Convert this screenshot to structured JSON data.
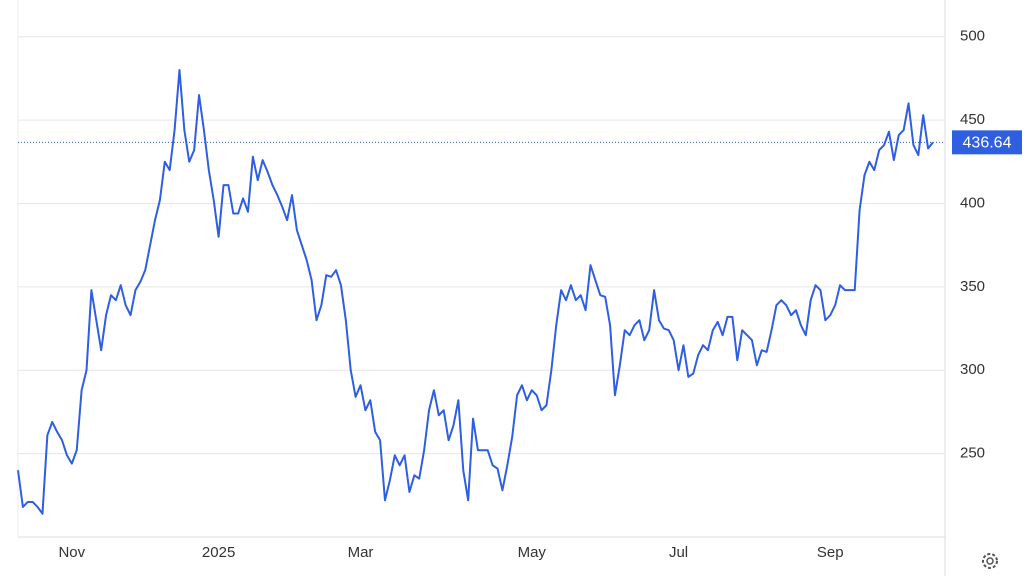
{
  "chart_data": {
    "type": "line",
    "color": "#2d5fe0",
    "grid": true,
    "categories": [
      null,
      null,
      null,
      null,
      null,
      null,
      null,
      null,
      null,
      null,
      null,
      "Nov",
      null,
      null,
      null,
      null,
      null,
      null,
      null,
      null,
      null,
      null,
      null,
      null,
      null,
      null,
      null,
      null,
      null,
      null,
      null,
      null,
      null,
      null,
      null,
      null,
      null,
      null,
      null,
      null,
      null,
      "2025",
      null,
      null,
      null,
      null,
      null,
      null,
      null,
      null,
      null,
      null,
      null,
      null,
      null,
      null,
      null,
      null,
      null,
      null,
      null,
      null,
      null,
      null,
      null,
      null,
      null,
      null,
      null,
      null,
      "Mar",
      null,
      null,
      null,
      null,
      null,
      null,
      null,
      null,
      null,
      null,
      null,
      null,
      null,
      null,
      null,
      null,
      null,
      null,
      null,
      null,
      null,
      null,
      null,
      null,
      null,
      null,
      null,
      null,
      null,
      null,
      null,
      null,
      null,
      null,
      "May",
      null,
      null,
      null,
      null,
      null,
      null,
      null,
      null,
      null,
      null,
      null,
      null,
      null,
      null,
      null,
      null,
      null,
      null,
      null,
      null,
      null,
      null,
      null,
      null,
      null,
      null,
      null,
      null,
      null,
      "Jul",
      null,
      null,
      null,
      null,
      null,
      null,
      null,
      null,
      null,
      null,
      null,
      null,
      null,
      null,
      null,
      null,
      null,
      null,
      null,
      null,
      null,
      null,
      null,
      null,
      null,
      null,
      null,
      null,
      null,
      null,
      "Sep",
      null,
      null,
      null,
      null,
      null,
      null,
      null,
      null,
      null,
      null,
      null,
      null,
      null,
      null,
      null,
      null,
      null,
      null,
      null,
      null,
      null
    ],
    "values": [
      240,
      218,
      221,
      221,
      218,
      214,
      261,
      269,
      263,
      258,
      249,
      244,
      252,
      288,
      300,
      348,
      330,
      312,
      333,
      345,
      342,
      351,
      339,
      333,
      348,
      353,
      360,
      375,
      390,
      402,
      425,
      420,
      444,
      480,
      444,
      425,
      432,
      465,
      444,
      420,
      402,
      380,
      411,
      411,
      394,
      394,
      403,
      395,
      428,
      414,
      426,
      419,
      411,
      405,
      398,
      390,
      405,
      384,
      375,
      366,
      354,
      330,
      339,
      357,
      356,
      360,
      351,
      330,
      300,
      284,
      291,
      276,
      282,
      263,
      258,
      222,
      234,
      249,
      243,
      249,
      227,
      237,
      235,
      252,
      276,
      288,
      273,
      276,
      258,
      267,
      282,
      240,
      222,
      271,
      252,
      252,
      252,
      243,
      241,
      228,
      243,
      260,
      285,
      291,
      282,
      288,
      285,
      276,
      279,
      300,
      327,
      348,
      342,
      351,
      342,
      345,
      336,
      363,
      354,
      345,
      344,
      327,
      285,
      303,
      324,
      321,
      327,
      330,
      318,
      324,
      348,
      330,
      325,
      324,
      318,
      300,
      315,
      296,
      298,
      309,
      315,
      312,
      324,
      329,
      321,
      332,
      332,
      306,
      324,
      321,
      318,
      303,
      312,
      311,
      324,
      339,
      342,
      339,
      333,
      336,
      327,
      321,
      342,
      351,
      348,
      330,
      333,
      339,
      351,
      348,
      348,
      348,
      396,
      417,
      425,
      420,
      432,
      435,
      443,
      426,
      441,
      444,
      460,
      435,
      429,
      453,
      433,
      436.64
    ],
    "ylim": [
      200,
      522
    ],
    "yticks": [
      250,
      300,
      350,
      400,
      450,
      500
    ]
  }
}
